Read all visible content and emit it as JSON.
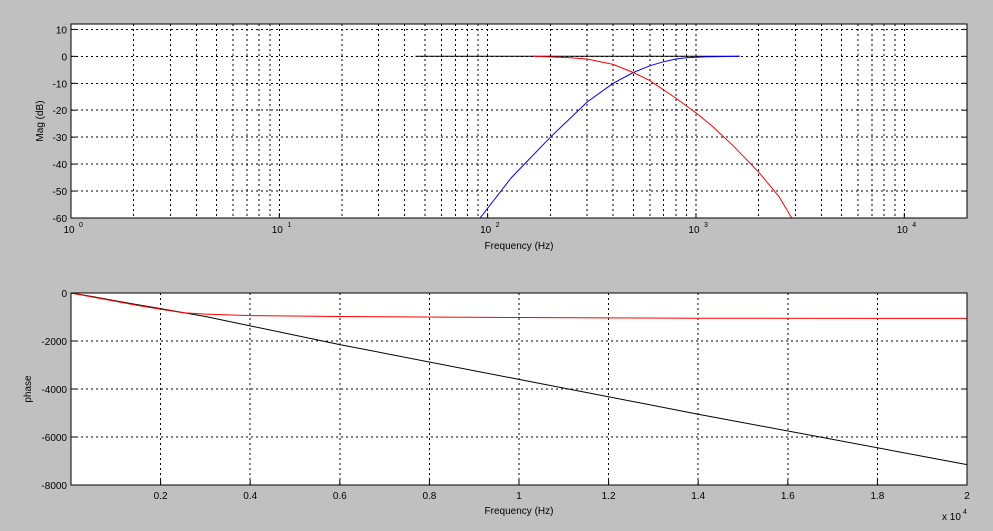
{
  "chart_data": [
    {
      "type": "line",
      "xscale": "log",
      "xlim": [
        1,
        20000
      ],
      "ylim": [
        -60,
        12
      ],
      "grid": true,
      "xlabel": "Frequency (Hz)",
      "ylabel": "Mag (dB)",
      "xticks": [
        {
          "value": 1,
          "base": "10",
          "exp": "0"
        },
        {
          "value": 10,
          "base": "10",
          "exp": "1"
        },
        {
          "value": 100,
          "base": "10",
          "exp": "2"
        },
        {
          "value": 1000,
          "base": "10",
          "exp": "3"
        },
        {
          "value": 10000,
          "base": "10",
          "exp": "4"
        }
      ],
      "yticks": [
        {
          "value": 10,
          "label": "10"
        },
        {
          "value": 0,
          "label": "0"
        },
        {
          "value": -10,
          "label": "-10"
        },
        {
          "value": -20,
          "label": "-20"
        },
        {
          "value": -30,
          "label": "-30"
        },
        {
          "value": -40,
          "label": "-40"
        },
        {
          "value": -50,
          "label": "-50"
        },
        {
          "value": -60,
          "label": "-60"
        }
      ],
      "series": [
        {
          "color": "#000000",
          "x": [
            45,
            1620
          ],
          "y": [
            0,
            0
          ]
        },
        {
          "color": "#0000ff",
          "x": [
            92,
            130,
            200,
            300,
            400,
            500,
            600,
            700,
            800,
            900,
            1100,
            1300,
            1620
          ],
          "y": [
            -60,
            -45,
            -30,
            -17,
            -10,
            -6,
            -3.5,
            -2,
            -1,
            -0.5,
            -0.2,
            -0.1,
            0
          ]
        },
        {
          "color": "#ff0000",
          "x": [
            165,
            250,
            300,
            400,
            500,
            600,
            800,
            1000,
            1200,
            1500,
            2000,
            2500,
            2880
          ],
          "y": [
            0,
            -0.5,
            -1,
            -3,
            -6,
            -9,
            -15.5,
            -21,
            -26,
            -33,
            -43,
            -52,
            -60
          ]
        }
      ]
    },
    {
      "type": "line",
      "xlim": [
        0,
        20000
      ],
      "ylim": [
        -8000,
        0
      ],
      "grid": true,
      "xlabel": "Frequency (Hz)",
      "ylabel": "phase",
      "xtick_labels": [
        "0.2",
        "0.4",
        "0.6",
        "0.8",
        "1",
        "1.2",
        "1.4",
        "1.6",
        "1.8",
        "2"
      ],
      "xtick_values": [
        2000,
        4000,
        6000,
        8000,
        10000,
        12000,
        14000,
        16000,
        18000,
        20000
      ],
      "x_multiplier": {
        "base": "x 10",
        "exp": "4"
      },
      "yticks": [
        {
          "value": 0,
          "label": "0"
        },
        {
          "value": -2000,
          "label": "-2000"
        },
        {
          "value": -4000,
          "label": "-4000"
        },
        {
          "value": -6000,
          "label": "-6000"
        },
        {
          "value": -8000,
          "label": "-8000"
        }
      ],
      "series": [
        {
          "color": "#000000",
          "x": [
            0,
            500,
            1000,
            2000,
            3000,
            6000,
            10000,
            14000,
            20000
          ],
          "y": [
            0,
            -160,
            -330,
            -650,
            -980,
            -2150,
            -3600,
            -5050,
            -7150
          ]
        },
        {
          "color": "#ff0000",
          "x": [
            0,
            500,
            1000,
            1500,
            2000,
            2500,
            3000,
            4000,
            6000,
            10000,
            14000,
            20000
          ],
          "y": [
            0,
            -180,
            -350,
            -520,
            -680,
            -820,
            -880,
            -940,
            -980,
            -1020,
            -1050,
            -1060
          ]
        }
      ]
    }
  ]
}
